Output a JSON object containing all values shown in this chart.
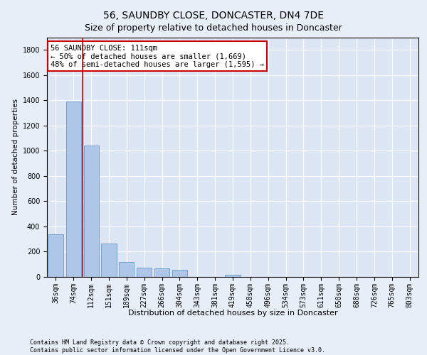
{
  "title": "56, SAUNDBY CLOSE, DONCASTER, DN4 7DE",
  "subtitle": "Size of property relative to detached houses in Doncaster",
  "xlabel": "Distribution of detached houses by size in Doncaster",
  "ylabel": "Number of detached properties",
  "categories": [
    "36sqm",
    "74sqm",
    "112sqm",
    "151sqm",
    "189sqm",
    "227sqm",
    "266sqm",
    "304sqm",
    "343sqm",
    "381sqm",
    "419sqm",
    "458sqm",
    "496sqm",
    "534sqm",
    "573sqm",
    "611sqm",
    "650sqm",
    "688sqm",
    "726sqm",
    "765sqm",
    "803sqm"
  ],
  "values": [
    340,
    1390,
    1040,
    265,
    120,
    75,
    70,
    55,
    0,
    0,
    15,
    0,
    0,
    0,
    0,
    0,
    0,
    0,
    0,
    0,
    0
  ],
  "bar_color": "#aec6e8",
  "bar_edge_color": "#6699cc",
  "vline_color": "#cc0000",
  "annotation_line1": "56 SAUNDBY CLOSE: 111sqm",
  "annotation_line2": "← 50% of detached houses are smaller (1,669)",
  "annotation_line3": "48% of semi-detached houses are larger (1,595) →",
  "annotation_box_color": "#cc0000",
  "ylim": [
    0,
    1900
  ],
  "yticks": [
    0,
    200,
    400,
    600,
    800,
    1000,
    1200,
    1400,
    1600,
    1800
  ],
  "background_color": "#e8eef7",
  "plot_bg_color": "#dde6f4",
  "footer_line1": "Contains HM Land Registry data © Crown copyright and database right 2025.",
  "footer_line2": "Contains public sector information licensed under the Open Government Licence v3.0.",
  "title_fontsize": 10,
  "xlabel_fontsize": 8,
  "ylabel_fontsize": 7.5,
  "tick_fontsize": 7,
  "annotation_fontsize": 7.5,
  "footer_fontsize": 6
}
